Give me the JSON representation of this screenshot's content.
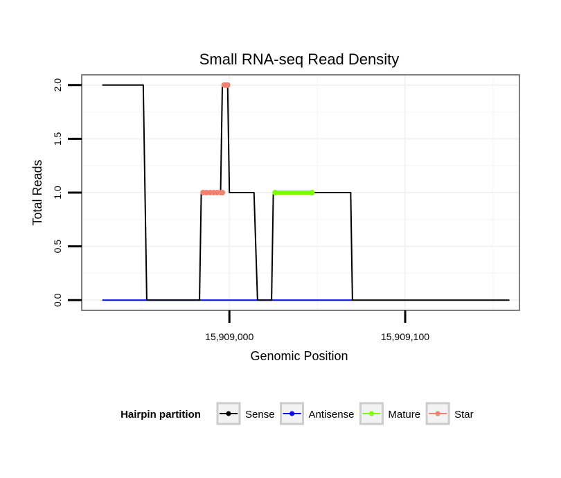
{
  "chart_data": {
    "type": "line",
    "title": "Small RNA-seq Read Density",
    "xlabel": "Genomic Position",
    "ylabel": "Total Reads",
    "xlim": [
      15908916,
      15909165
    ],
    "ylim": [
      -0.095,
      2.095
    ],
    "x_ticks": [
      {
        "value": 15909000,
        "label": "15,909,000"
      },
      {
        "value": 15909100,
        "label": "15,909,100"
      }
    ],
    "y_ticks": [
      {
        "value": 0.0,
        "label": "0.0"
      },
      {
        "value": 0.5,
        "label": "0.5"
      },
      {
        "value": 1.0,
        "label": "1.0"
      },
      {
        "value": 1.5,
        "label": "1.5"
      },
      {
        "value": 2.0,
        "label": "2.0"
      }
    ],
    "grid": true,
    "series": [
      {
        "name": "Sense",
        "color": "#000000",
        "points": [
          [
            15908928,
            2
          ],
          [
            15908951,
            2
          ],
          [
            15908953,
            0
          ],
          [
            15908983,
            0
          ],
          [
            15908984,
            1
          ],
          [
            15908989,
            1
          ],
          [
            15908990,
            1
          ],
          [
            15908995,
            1
          ],
          [
            15908996,
            2
          ],
          [
            15908999,
            2
          ],
          [
            15909000,
            1
          ],
          [
            15909014,
            1
          ],
          [
            15909016,
            0
          ],
          [
            15909024,
            0
          ],
          [
            15909025,
            1
          ],
          [
            15909045,
            1
          ],
          [
            15909050,
            1
          ],
          [
            15909069,
            1
          ],
          [
            15909070,
            0
          ],
          [
            15909159,
            0
          ]
        ]
      },
      {
        "name": "Antisense",
        "color": "#0000ff",
        "points": [
          [
            15908928,
            0
          ],
          [
            15909070,
            0
          ]
        ]
      },
      {
        "name": "Mature",
        "color": "#7cfc00",
        "points": [
          [
            15909026,
            1
          ],
          [
            15909047,
            1
          ]
        ]
      },
      {
        "name": "Star",
        "color": "#f08070",
        "points": [
          [
            15908985,
            1
          ],
          [
            15908987,
            1
          ],
          [
            15908989,
            1
          ],
          [
            15908991,
            1
          ],
          [
            15908993,
            1
          ],
          [
            15908995,
            1
          ],
          [
            15908996,
            1
          ],
          [
            15908997,
            2
          ],
          [
            15908998,
            2
          ],
          [
            15908999,
            2
          ]
        ]
      }
    ],
    "legend": {
      "title": "Hairpin partition",
      "placement": "bottom",
      "entries": [
        "Sense",
        "Antisense",
        "Mature",
        "Star"
      ]
    }
  }
}
